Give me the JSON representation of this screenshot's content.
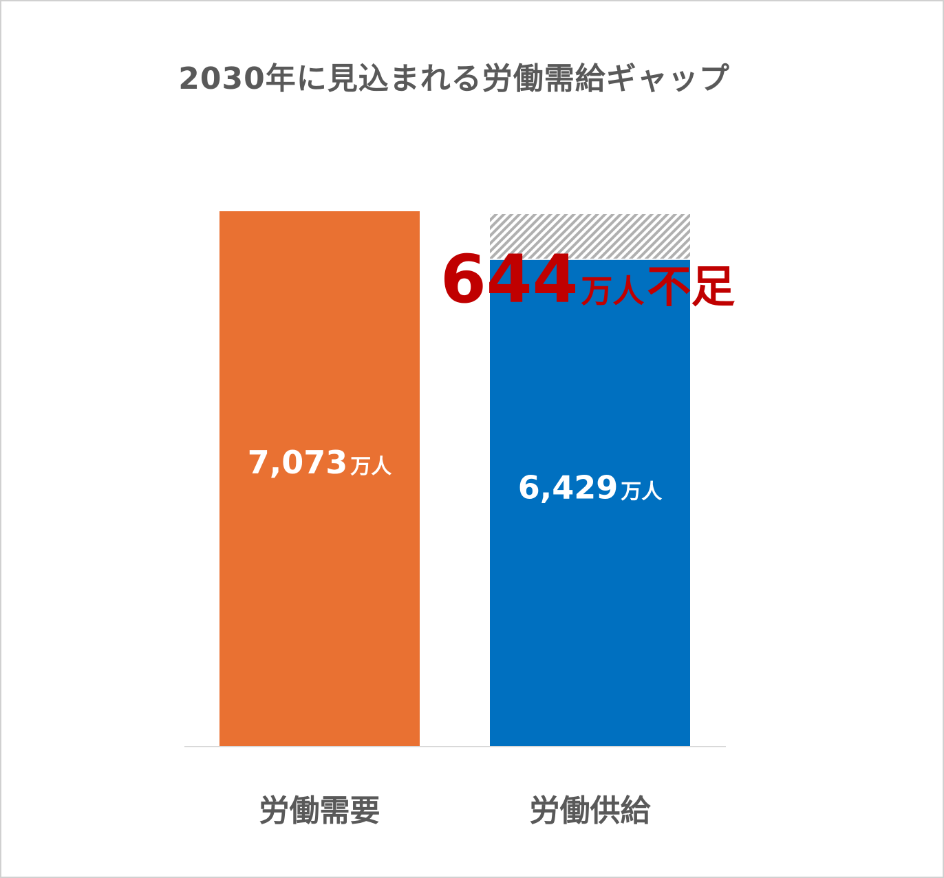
{
  "chart_data": {
    "type": "bar",
    "title": "2030年に見込まれる労働需給ギャップ",
    "categories": [
      "労働需要",
      "労働供給"
    ],
    "values": [
      7073,
      6429
    ],
    "value_labels": [
      {
        "number": "7,073",
        "unit": "万人"
      },
      {
        "number": "6,429",
        "unit": "万人"
      }
    ],
    "unit": "万人",
    "gap": {
      "value": 644,
      "number": "644",
      "unit": "万人",
      "word": "不足"
    },
    "grid": false,
    "legend": "none",
    "colors": {
      "demand": "#E97132",
      "supply": "#0070C0",
      "gap_text": "#C00000",
      "gap_hatch": "#b0b0b0"
    }
  }
}
